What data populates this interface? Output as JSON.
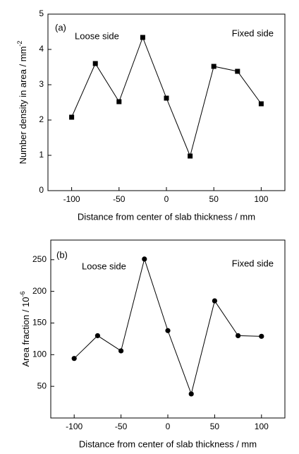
{
  "chart_data": [
    {
      "type": "line",
      "marker": "square",
      "color": "#000000",
      "annotations": [
        "(a)",
        "Loose side",
        "Fixed side"
      ],
      "xlabel": "Distance from center of slab thickness / mm",
      "ylabel": "Number density in area / mm",
      "ylabel_sup": "-2",
      "x": [
        -100,
        -75,
        -50,
        -25,
        0,
        25,
        50,
        75,
        100
      ],
      "values": [
        2.08,
        3.6,
        2.52,
        4.34,
        2.62,
        0.98,
        3.52,
        3.38,
        2.46
      ],
      "xlim": [
        -125,
        125
      ],
      "xticks": [
        -100,
        -50,
        0,
        50,
        100
      ],
      "ylim": [
        0,
        5
      ],
      "yticks": [
        0,
        1,
        2,
        3,
        4,
        5
      ]
    },
    {
      "type": "line",
      "marker": "circle",
      "color": "#000000",
      "annotations": [
        "(b)",
        "Loose side",
        "Fixed side"
      ],
      "xlabel": "Distance from center of slab thickness / mm",
      "ylabel": "Area fraction / 10",
      "ylabel_sup": "-6",
      "x": [
        -100,
        -75,
        -50,
        -25,
        0,
        25,
        50,
        75,
        100
      ],
      "values": [
        94,
        130,
        106,
        251,
        138,
        38,
        185,
        130,
        129
      ],
      "xlim": [
        -125,
        125
      ],
      "xticks": [
        -100,
        -50,
        0,
        50,
        100
      ],
      "ylim": [
        0,
        281
      ],
      "yticks": [
        50,
        100,
        150,
        200,
        250
      ]
    }
  ]
}
